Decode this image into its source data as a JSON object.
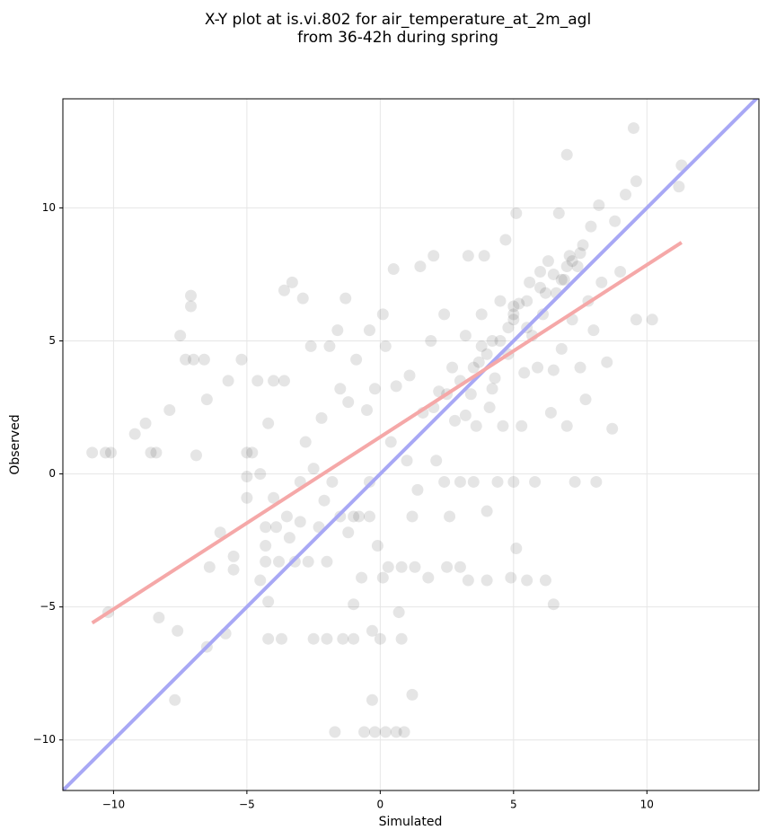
{
  "chart_data": {
    "type": "scatter",
    "title": [
      "X-Y plot at is.vi.802 for air_temperature_at_2m_agl",
      "from 36-42h during spring"
    ],
    "x_label": "Simulated",
    "y_label": "Observed",
    "xlim": [
      -11.9,
      14.2
    ],
    "ylim": [
      -11.9,
      14.1
    ],
    "xticks": [
      {
        "value": -10,
        "label": "−10"
      },
      {
        "value": -5,
        "label": "−5"
      },
      0,
      5,
      10
    ],
    "yticks": [
      {
        "value": -10,
        "label": "−10"
      },
      {
        "value": -5,
        "label": "−5"
      },
      0,
      5,
      10
    ],
    "grid": true,
    "series": [
      {
        "color": "#000000",
        "alpha": 0.1,
        "x": [
          -10.8,
          -10.3,
          -10.1,
          -10.2,
          -9.2,
          -8.8,
          -8.6,
          -8.4,
          -8.3,
          -7.9,
          -7.7,
          -7.6,
          -7.5,
          -7.3,
          -7.1,
          -7.1,
          -7.0,
          -6.9,
          -6.6,
          -6.5,
          -6.5,
          -6.4,
          -6.0,
          -5.8,
          -5.7,
          -5.5,
          -5.5,
          -5.2,
          -5.0,
          -5.0,
          -5.0,
          -4.8,
          -4.6,
          -4.5,
          -4.5,
          -4.3,
          -4.3,
          -4.3,
          -4.2,
          -4.2,
          -4.2,
          -4.0,
          -4.0,
          -3.9,
          -3.8,
          -3.7,
          -3.6,
          -3.6,
          -3.5,
          -3.4,
          -3.3,
          -3.2,
          -3.0,
          -3.0,
          -2.9,
          -2.8,
          -2.7,
          -2.6,
          -2.5,
          -2.5,
          -2.3,
          -2.2,
          -2.1,
          -2.0,
          -2.0,
          -1.9,
          -1.8,
          -1.7,
          -1.6,
          -1.5,
          -1.5,
          -1.4,
          -1.3,
          -1.2,
          -1.2,
          -1.0,
          -1.0,
          -1.0,
          -0.9,
          -0.8,
          -0.7,
          -0.6,
          -0.5,
          -0.4,
          -0.4,
          -0.4,
          -0.3,
          -0.3,
          -0.2,
          -0.2,
          -0.1,
          0,
          0.1,
          0.1,
          0.2,
          0.2,
          0.3,
          0.4,
          0.5,
          0.6,
          0.6,
          0.7,
          0.8,
          0.8,
          0.9,
          1.0,
          1.1,
          1.2,
          1.2,
          1.3,
          1.4,
          1.5,
          1.6,
          1.8,
          1.9,
          2.0,
          2.1,
          2.2,
          2.4,
          2.4,
          2.5,
          2.6,
          2.7,
          2.8,
          3.0,
          3.0,
          3.2,
          3.3,
          3.3,
          3.4,
          3.5,
          3.6,
          3.7,
          3.8,
          3.9,
          4.0,
          4.0,
          4.1,
          4.2,
          4.3,
          4.4,
          4.5,
          4.6,
          4.7,
          4.8,
          4.9,
          5.0,
          5.0,
          5.1,
          5.1,
          5.2,
          5.3,
          5.4,
          5.5,
          5.6,
          5.7,
          5.8,
          5.9,
          6.0,
          6.1,
          6.2,
          6.3,
          6.4,
          6.5,
          6.5,
          6.6,
          6.7,
          6.8,
          6.9,
          7.0,
          7.0,
          7.1,
          7.2,
          7.3,
          7.4,
          7.5,
          7.6,
          7.7,
          7.8,
          7.9,
          8.0,
          8.1,
          8.2,
          8.3,
          8.5,
          8.7,
          8.8,
          9.0,
          9.2,
          9.5,
          9.6,
          9.6,
          10.2,
          11.3,
          11.2,
          3.0,
          3.5,
          4.0,
          4.5,
          5.0,
          5.0,
          5.5,
          6.0,
          6.5,
          7.0,
          7.2,
          6.8,
          4.8,
          3.8,
          2.5,
          2.0,
          5.5,
          6.2,
          7.5,
          4.2,
          3.2
        ],
        "values": [
          0.8,
          0.8,
          0.8,
          -5.2,
          1.5,
          1.9,
          0.8,
          0.8,
          -5.4,
          2.4,
          -8.5,
          -5.9,
          5.2,
          4.3,
          6.7,
          6.3,
          4.3,
          0.7,
          4.3,
          2.8,
          -6.5,
          -3.5,
          -2.2,
          -6.0,
          3.5,
          -3.6,
          -3.1,
          4.3,
          0.8,
          -0.1,
          -0.9,
          0.8,
          3.5,
          0,
          -4.0,
          -2.0,
          -2.7,
          -3.3,
          1.9,
          -4.8,
          -6.2,
          3.5,
          -0.9,
          -2.0,
          -3.3,
          -6.2,
          6.9,
          3.5,
          -1.6,
          -2.4,
          7.2,
          -3.3,
          -0.3,
          -1.8,
          6.6,
          1.2,
          -3.3,
          4.8,
          0.2,
          -6.2,
          -2.0,
          2.1,
          -1.0,
          -3.3,
          -6.2,
          4.8,
          -0.3,
          -9.7,
          5.4,
          -1.6,
          3.2,
          -6.2,
          6.6,
          -2.2,
          2.7,
          -1.6,
          -4.9,
          -6.2,
          4.3,
          -1.6,
          -3.9,
          -9.7,
          2.4,
          5.4,
          -1.6,
          -0.3,
          -8.5,
          -5.9,
          3.2,
          -9.7,
          -2.7,
          -6.2,
          -3.9,
          6.0,
          4.8,
          -9.7,
          -3.5,
          1.2,
          7.7,
          3.3,
          -9.7,
          -5.2,
          -6.2,
          -3.5,
          -9.7,
          0.5,
          3.7,
          -8.3,
          -1.6,
          -3.5,
          -0.6,
          7.8,
          2.3,
          -3.9,
          5.0,
          8.2,
          0.5,
          3.1,
          -0.3,
          6.0,
          -3.5,
          -1.6,
          4.0,
          2.0,
          -3.5,
          -0.3,
          5.2,
          -4.0,
          8.2,
          3.0,
          -0.3,
          1.8,
          4.2,
          6.0,
          8.2,
          -4.0,
          -1.4,
          2.5,
          5.0,
          3.6,
          -0.3,
          6.5,
          1.8,
          8.8,
          4.5,
          -3.9,
          5.8,
          -0.3,
          -2.8,
          9.8,
          6.4,
          1.8,
          3.8,
          -4.0,
          7.2,
          5.2,
          -0.3,
          4.0,
          7.6,
          6.0,
          -4.0,
          8.0,
          2.3,
          3.9,
          -4.9,
          6.8,
          9.8,
          4.7,
          7.3,
          12.0,
          1.8,
          8.2,
          5.8,
          -0.3,
          7.8,
          4.0,
          8.6,
          2.8,
          6.5,
          9.3,
          5.4,
          -0.3,
          10.1,
          7.2,
          4.2,
          1.7,
          9.5,
          7.6,
          10.5,
          13.0,
          11.0,
          5.8,
          5.8,
          11.6,
          10.8,
          3.5,
          4.0,
          4.5,
          5.0,
          6.0,
          6.3,
          6.5,
          7.0,
          7.5,
          7.8,
          8.0,
          7.3,
          5.5,
          4.8,
          3.0,
          2.5,
          5.5,
          6.8,
          8.3,
          3.2,
          2.2
        ]
      }
    ],
    "lines": [
      {
        "color": "#a8a8f5",
        "x": [
          -11.9,
          14.2
        ],
        "values": [
          -11.9,
          14.2
        ]
      },
      {
        "color": "#f5a8a8",
        "x": [
          -10.8,
          11.3
        ],
        "values": [
          -5.6,
          8.7
        ]
      }
    ]
  }
}
